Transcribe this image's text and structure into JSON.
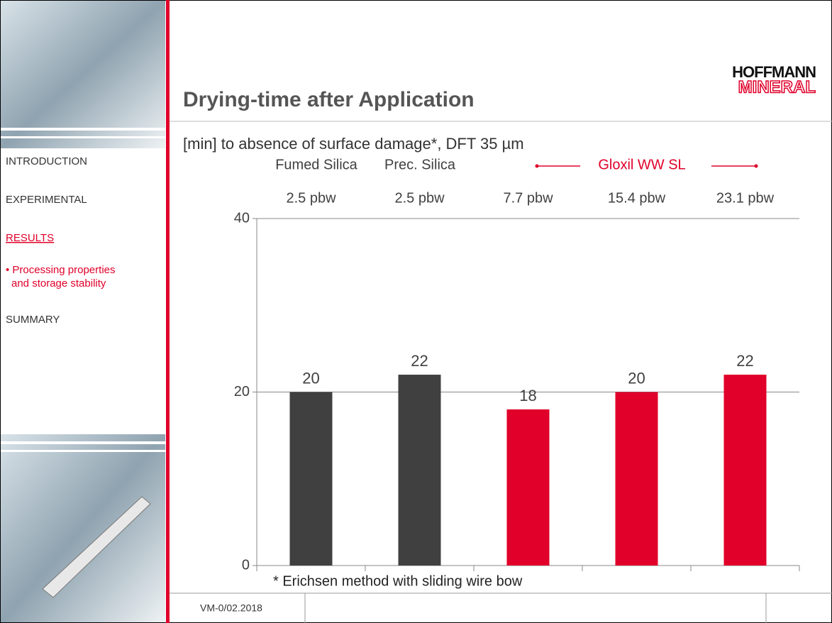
{
  "header": {
    "title": "Drying-time after Application",
    "subtitle": "[min] to absence of surface damage*, DFT 35 µm",
    "logo": [
      "HOFFMANN",
      "MINERAL"
    ]
  },
  "nav": [
    "INTRODUCTION",
    "EXPERIMENTAL",
    "RESULTS",
    "• Processing properties",
    "and storage stability",
    "SUMMARY"
  ],
  "chart_data": {
    "type": "bar",
    "groups": [
      "Fumed Silica",
      "Prec. Silica",
      "Gloxil WW SL"
    ],
    "categories": [
      "2.5 pbw",
      "2.5 pbw",
      "7.7 pbw",
      "15.4 pbw",
      "23.1 pbw"
    ],
    "values": [
      20,
      22,
      18,
      20,
      22
    ],
    "colors": [
      "#404040",
      "#404040",
      "#e0002a",
      "#e0002a",
      "#e0002a"
    ],
    "ylim": [
      0,
      40
    ],
    "yticks": [
      0,
      20,
      40
    ],
    "grid": true,
    "footnote": "* Erichsen method with sliding wire bow"
  },
  "footer": {
    "code": "VM-0/02.2018"
  }
}
